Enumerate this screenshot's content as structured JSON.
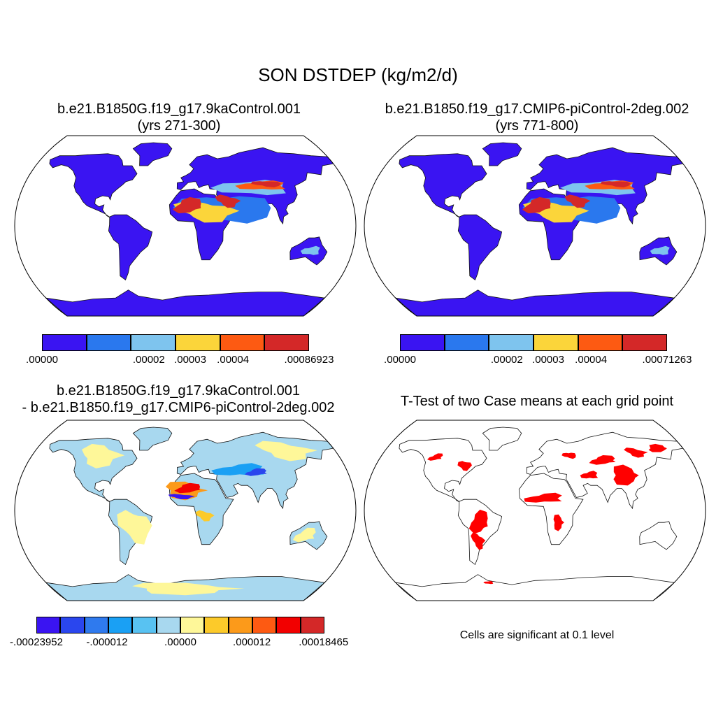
{
  "figure": {
    "title": "SON DSTDEP (kg/m2/d)"
  },
  "panels": [
    {
      "id": "case1",
      "title_line1": "b.e21.B1850G.f19_g17.9kaControl.001",
      "title_line2": "(yrs 271-300)",
      "colorbar": {
        "colors": [
          "#3a14f2",
          "#2a78ee",
          "#7ec4ee",
          "#fbd53a",
          "#fd5a12",
          "#d42828"
        ],
        "labels": [
          ".00000",
          ".00002",
          ".00003",
          ".00004",
          ".00086923"
        ]
      }
    },
    {
      "id": "case2",
      "title_line1": "b.e21.B1850.f19_g17.CMIP6-piControl-2deg.002",
      "title_line2": "(yrs 771-800)",
      "colorbar": {
        "colors": [
          "#3a14f2",
          "#2a78ee",
          "#7ec4ee",
          "#fbd53a",
          "#fd5a12",
          "#d42828"
        ],
        "labels": [
          ".00000",
          ".00002",
          ".00003",
          ".00004",
          ".00071263"
        ]
      }
    },
    {
      "id": "difference",
      "title_line1": "b.e21.B1850G.f19_g17.9kaControl.001",
      "title_line2": "- b.e21.B1850.f19_g17.CMIP6-piControl-2deg.002",
      "colorbar": {
        "colors": [
          "#3a14f2",
          "#2a46ee",
          "#2f7aee",
          "#1aa0f4",
          "#58c2f2",
          "#a8d8ef",
          "#fef799",
          "#fcca2a",
          "#fc9a1a",
          "#fd5a12",
          "#f20000",
          "#d42828"
        ],
        "labels": [
          "-.00023952",
          "-.000012",
          ".00000",
          ".000012",
          ".00018465"
        ]
      }
    },
    {
      "id": "ttest",
      "title_line1": "T-Test of two Case means at each grid point",
      "note": "Cells are significant at 0.1 level",
      "significant_color": "#ff0000"
    }
  ]
}
